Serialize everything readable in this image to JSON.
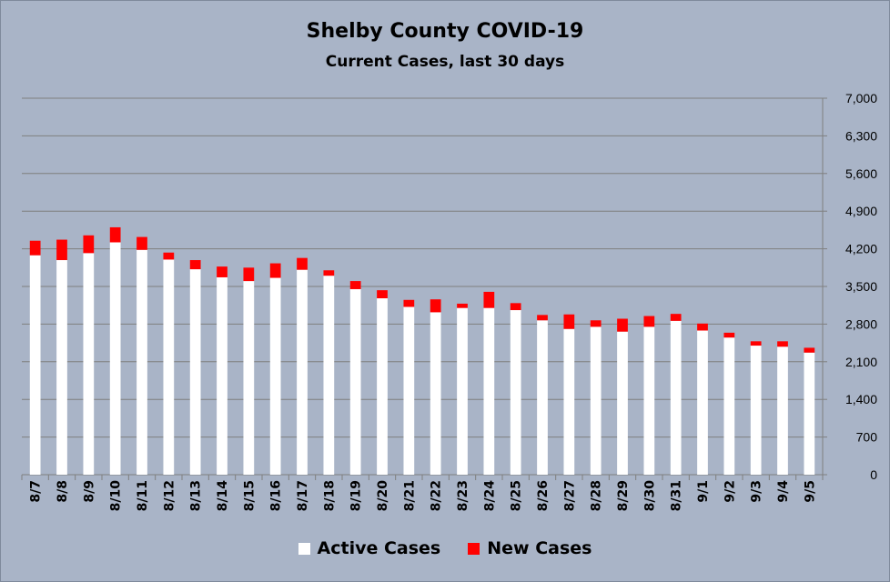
{
  "chart_data": {
    "type": "bar",
    "stacked": true,
    "title": "Shelby County COVID-19",
    "subtitle": "Current Cases, last 30 days",
    "categories": [
      "8/7",
      "8/8",
      "8/9",
      "8/10",
      "8/11",
      "8/12",
      "8/13",
      "8/14",
      "8/15",
      "8/16",
      "8/17",
      "8/18",
      "8/19",
      "8/20",
      "8/21",
      "8/22",
      "8/23",
      "8/24",
      "8/25",
      "8/26",
      "8/27",
      "8/28",
      "8/29",
      "8/30",
      "8/31",
      "9/1",
      "9/2",
      "9/3",
      "9/4",
      "9/5"
    ],
    "series": [
      {
        "name": "Active Cases",
        "color": "#ffffff",
        "values": [
          4080,
          3990,
          4120,
          4320,
          4180,
          4000,
          3820,
          3670,
          3600,
          3660,
          3810,
          3700,
          3450,
          3280,
          3120,
          3020,
          3100,
          3100,
          3060,
          2870,
          2710,
          2750,
          2660,
          2750,
          2860,
          2680,
          2550,
          2400,
          2380,
          2270
        ]
      },
      {
        "name": "New Cases",
        "color": "#ff0000",
        "values": [
          270,
          380,
          330,
          280,
          240,
          130,
          170,
          200,
          250,
          270,
          220,
          100,
          150,
          150,
          130,
          240,
          80,
          300,
          130,
          100,
          270,
          120,
          240,
          200,
          130,
          130,
          90,
          80,
          100,
          90
        ]
      }
    ],
    "yaxis": {
      "min": 0,
      "max": 7000,
      "step": 700,
      "position": "right",
      "ticks": [
        "0",
        "700",
        "1,400",
        "2,100",
        "2,800",
        "3,500",
        "4,200",
        "4,900",
        "5,600",
        "6,300",
        "7,000"
      ]
    },
    "grid": true,
    "legend_position": "bottom"
  }
}
